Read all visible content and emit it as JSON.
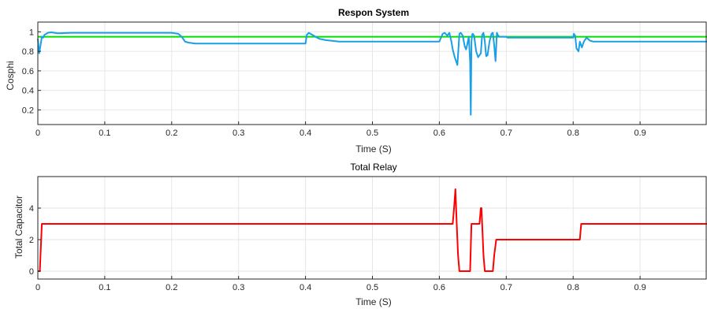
{
  "chart_data": [
    {
      "type": "line",
      "title": "Respon System",
      "xlabel": "Time (S)",
      "ylabel": "Cosphi",
      "xlim": [
        0,
        1
      ],
      "ylim": [
        0.05,
        1.1
      ],
      "grid": true,
      "xticks": [
        0,
        0.1,
        0.2,
        0.3,
        0.4,
        0.5,
        0.6,
        0.7,
        0.8,
        0.9
      ],
      "xtick_labels": [
        "0",
        "0.1",
        "0.2",
        "0.3",
        "0.4",
        "0.5",
        "0.6",
        "0.7",
        "0.8",
        "0.9"
      ],
      "yticks": [
        0.2,
        0.4,
        0.6,
        0.8,
        1
      ],
      "ytick_labels": [
        "0.2",
        "0.4",
        "0.6",
        "0.8",
        "1"
      ],
      "series": [
        {
          "color": "#00e000",
          "x": [
            0,
            1
          ],
          "y": [
            0.95,
            0.95
          ]
        },
        {
          "color": "#1a9fe6",
          "x": [
            0,
            0.002,
            0.004,
            0.006,
            0.008,
            0.01,
            0.015,
            0.02,
            0.03,
            0.05,
            0.1,
            0.15,
            0.2,
            0.21,
            0.215,
            0.22,
            0.225,
            0.235,
            0.25,
            0.3,
            0.35,
            0.4,
            0.402,
            0.405,
            0.41,
            0.42,
            0.43,
            0.45,
            0.5,
            0.55,
            0.6,
            0.605,
            0.608,
            0.612,
            0.615,
            0.618,
            0.62,
            0.623,
            0.627,
            0.63,
            0.632,
            0.635,
            0.638,
            0.64,
            0.642,
            0.644,
            0.646,
            0.647,
            0.648,
            0.649,
            0.65,
            0.652,
            0.655,
            0.658,
            0.66,
            0.662,
            0.664,
            0.666,
            0.668,
            0.67,
            0.672,
            0.675,
            0.678,
            0.68,
            0.682,
            0.684,
            0.686,
            0.688,
            0.69,
            0.695,
            0.7,
            0.702,
            0.705,
            0.71,
            0.75,
            0.8,
            0.801,
            0.803,
            0.805,
            0.808,
            0.81,
            0.813,
            0.816,
            0.82,
            0.825,
            0.83,
            0.84,
            0.85,
            0.9,
            0.95,
            1.0
          ],
          "y": [
            0.93,
            0.78,
            0.86,
            0.95,
            0.94,
            0.97,
            0.99,
            0.995,
            0.985,
            0.99,
            0.99,
            0.99,
            0.99,
            0.98,
            0.95,
            0.9,
            0.89,
            0.88,
            0.88,
            0.88,
            0.88,
            0.88,
            0.97,
            0.99,
            0.97,
            0.93,
            0.915,
            0.9,
            0.9,
            0.9,
            0.9,
            0.98,
            0.99,
            0.96,
            0.99,
            0.9,
            0.82,
            0.74,
            0.66,
            0.98,
            0.99,
            0.96,
            0.85,
            0.82,
            0.88,
            0.95,
            0.7,
            0.15,
            0.9,
            0.97,
            0.98,
            0.96,
            0.8,
            0.74,
            0.76,
            0.78,
            0.97,
            0.99,
            0.9,
            0.75,
            0.76,
            0.9,
            0.98,
            0.99,
            0.86,
            0.7,
            0.99,
            0.96,
            0.95,
            0.95,
            0.95,
            0.94,
            0.94,
            0.94,
            0.94,
            0.94,
            0.98,
            0.96,
            0.83,
            0.8,
            0.9,
            0.84,
            0.9,
            0.94,
            0.91,
            0.9,
            0.9,
            0.9,
            0.9,
            0.9,
            0.9
          ]
        }
      ]
    },
    {
      "type": "line",
      "title": "Total Relay",
      "xlabel": "Time (S)",
      "ylabel": "Total Capacitor",
      "xlim": [
        0,
        1
      ],
      "ylim": [
        -0.5,
        6
      ],
      "grid": true,
      "xticks": [
        0,
        0.1,
        0.2,
        0.3,
        0.4,
        0.5,
        0.6,
        0.7,
        0.8,
        0.9
      ],
      "xtick_labels": [
        "0",
        "0.1",
        "0.2",
        "0.3",
        "0.4",
        "0.5",
        "0.6",
        "0.7",
        "0.8",
        "0.9"
      ],
      "yticks": [
        0,
        2,
        4
      ],
      "ytick_labels": [
        "0",
        "2",
        "4"
      ],
      "series": [
        {
          "color": "#ff0000",
          "x": [
            0,
            0.003,
            0.005,
            0.006,
            0.62,
            0.622,
            0.624,
            0.626,
            0.628,
            0.63,
            0.632,
            0.646,
            0.648,
            0.66,
            0.662,
            0.663,
            0.664,
            0.666,
            0.668,
            0.67,
            0.68,
            0.682,
            0.685,
            0.686,
            0.81,
            0.812,
            1.0
          ],
          "y": [
            0,
            0,
            2,
            3,
            3,
            4,
            5.2,
            3,
            1,
            0,
            0,
            0,
            3,
            3,
            4,
            4,
            3,
            1,
            0,
            0,
            0,
            1,
            2,
            2,
            2,
            3,
            3
          ]
        }
      ]
    }
  ]
}
